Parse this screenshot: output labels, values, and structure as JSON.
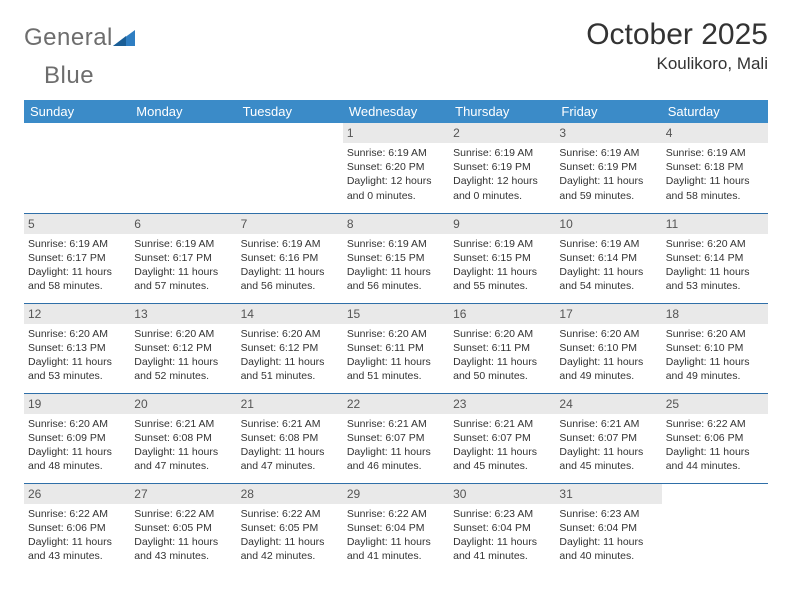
{
  "brand": {
    "text1": "General",
    "text2": "Blue"
  },
  "title": "October 2025",
  "location": "Koulikoro, Mali",
  "colors": {
    "header_bg": "#3b8bc8",
    "header_text": "#ffffff",
    "daynum_bg": "#e9e9e9",
    "row_border": "#2f6fa8",
    "body_text": "#333333",
    "logo_gray": "#6d6d6d",
    "logo_blue": "#2f7ec2"
  },
  "fonts": {
    "title_pt": 30,
    "location_pt": 17,
    "dayhead_pt": 13,
    "cell_pt": 10.5
  },
  "dayHeaders": [
    "Sunday",
    "Monday",
    "Tuesday",
    "Wednesday",
    "Thursday",
    "Friday",
    "Saturday"
  ],
  "weeks": [
    [
      null,
      null,
      null,
      {
        "n": "1",
        "sr": "Sunrise: 6:19 AM",
        "ss": "Sunset: 6:20 PM",
        "dl": "Daylight: 12 hours and 0 minutes."
      },
      {
        "n": "2",
        "sr": "Sunrise: 6:19 AM",
        "ss": "Sunset: 6:19 PM",
        "dl": "Daylight: 12 hours and 0 minutes."
      },
      {
        "n": "3",
        "sr": "Sunrise: 6:19 AM",
        "ss": "Sunset: 6:19 PM",
        "dl": "Daylight: 11 hours and 59 minutes."
      },
      {
        "n": "4",
        "sr": "Sunrise: 6:19 AM",
        "ss": "Sunset: 6:18 PM",
        "dl": "Daylight: 11 hours and 58 minutes."
      }
    ],
    [
      {
        "n": "5",
        "sr": "Sunrise: 6:19 AM",
        "ss": "Sunset: 6:17 PM",
        "dl": "Daylight: 11 hours and 58 minutes."
      },
      {
        "n": "6",
        "sr": "Sunrise: 6:19 AM",
        "ss": "Sunset: 6:17 PM",
        "dl": "Daylight: 11 hours and 57 minutes."
      },
      {
        "n": "7",
        "sr": "Sunrise: 6:19 AM",
        "ss": "Sunset: 6:16 PM",
        "dl": "Daylight: 11 hours and 56 minutes."
      },
      {
        "n": "8",
        "sr": "Sunrise: 6:19 AM",
        "ss": "Sunset: 6:15 PM",
        "dl": "Daylight: 11 hours and 56 minutes."
      },
      {
        "n": "9",
        "sr": "Sunrise: 6:19 AM",
        "ss": "Sunset: 6:15 PM",
        "dl": "Daylight: 11 hours and 55 minutes."
      },
      {
        "n": "10",
        "sr": "Sunrise: 6:19 AM",
        "ss": "Sunset: 6:14 PM",
        "dl": "Daylight: 11 hours and 54 minutes."
      },
      {
        "n": "11",
        "sr": "Sunrise: 6:20 AM",
        "ss": "Sunset: 6:14 PM",
        "dl": "Daylight: 11 hours and 53 minutes."
      }
    ],
    [
      {
        "n": "12",
        "sr": "Sunrise: 6:20 AM",
        "ss": "Sunset: 6:13 PM",
        "dl": "Daylight: 11 hours and 53 minutes."
      },
      {
        "n": "13",
        "sr": "Sunrise: 6:20 AM",
        "ss": "Sunset: 6:12 PM",
        "dl": "Daylight: 11 hours and 52 minutes."
      },
      {
        "n": "14",
        "sr": "Sunrise: 6:20 AM",
        "ss": "Sunset: 6:12 PM",
        "dl": "Daylight: 11 hours and 51 minutes."
      },
      {
        "n": "15",
        "sr": "Sunrise: 6:20 AM",
        "ss": "Sunset: 6:11 PM",
        "dl": "Daylight: 11 hours and 51 minutes."
      },
      {
        "n": "16",
        "sr": "Sunrise: 6:20 AM",
        "ss": "Sunset: 6:11 PM",
        "dl": "Daylight: 11 hours and 50 minutes."
      },
      {
        "n": "17",
        "sr": "Sunrise: 6:20 AM",
        "ss": "Sunset: 6:10 PM",
        "dl": "Daylight: 11 hours and 49 minutes."
      },
      {
        "n": "18",
        "sr": "Sunrise: 6:20 AM",
        "ss": "Sunset: 6:10 PM",
        "dl": "Daylight: 11 hours and 49 minutes."
      }
    ],
    [
      {
        "n": "19",
        "sr": "Sunrise: 6:20 AM",
        "ss": "Sunset: 6:09 PM",
        "dl": "Daylight: 11 hours and 48 minutes."
      },
      {
        "n": "20",
        "sr": "Sunrise: 6:21 AM",
        "ss": "Sunset: 6:08 PM",
        "dl": "Daylight: 11 hours and 47 minutes."
      },
      {
        "n": "21",
        "sr": "Sunrise: 6:21 AM",
        "ss": "Sunset: 6:08 PM",
        "dl": "Daylight: 11 hours and 47 minutes."
      },
      {
        "n": "22",
        "sr": "Sunrise: 6:21 AM",
        "ss": "Sunset: 6:07 PM",
        "dl": "Daylight: 11 hours and 46 minutes."
      },
      {
        "n": "23",
        "sr": "Sunrise: 6:21 AM",
        "ss": "Sunset: 6:07 PM",
        "dl": "Daylight: 11 hours and 45 minutes."
      },
      {
        "n": "24",
        "sr": "Sunrise: 6:21 AM",
        "ss": "Sunset: 6:07 PM",
        "dl": "Daylight: 11 hours and 45 minutes."
      },
      {
        "n": "25",
        "sr": "Sunrise: 6:22 AM",
        "ss": "Sunset: 6:06 PM",
        "dl": "Daylight: 11 hours and 44 minutes."
      }
    ],
    [
      {
        "n": "26",
        "sr": "Sunrise: 6:22 AM",
        "ss": "Sunset: 6:06 PM",
        "dl": "Daylight: 11 hours and 43 minutes."
      },
      {
        "n": "27",
        "sr": "Sunrise: 6:22 AM",
        "ss": "Sunset: 6:05 PM",
        "dl": "Daylight: 11 hours and 43 minutes."
      },
      {
        "n": "28",
        "sr": "Sunrise: 6:22 AM",
        "ss": "Sunset: 6:05 PM",
        "dl": "Daylight: 11 hours and 42 minutes."
      },
      {
        "n": "29",
        "sr": "Sunrise: 6:22 AM",
        "ss": "Sunset: 6:04 PM",
        "dl": "Daylight: 11 hours and 41 minutes."
      },
      {
        "n": "30",
        "sr": "Sunrise: 6:23 AM",
        "ss": "Sunset: 6:04 PM",
        "dl": "Daylight: 11 hours and 41 minutes."
      },
      {
        "n": "31",
        "sr": "Sunrise: 6:23 AM",
        "ss": "Sunset: 6:04 PM",
        "dl": "Daylight: 11 hours and 40 minutes."
      },
      null
    ]
  ]
}
